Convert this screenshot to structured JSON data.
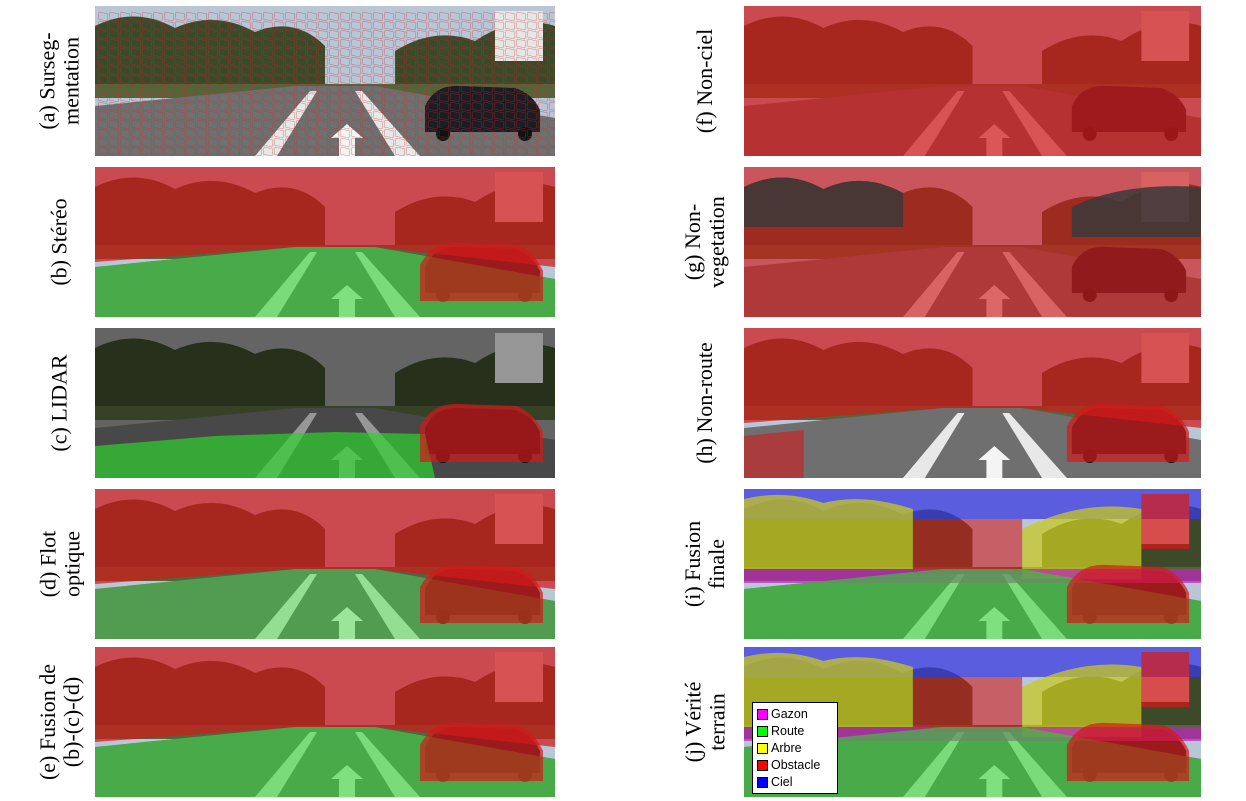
{
  "panels": [
    {
      "id": "a",
      "label_lines": [
        "(a) Surseg-",
        "mentation"
      ],
      "overlay": "overseg"
    },
    {
      "id": "b",
      "label_lines": [
        "(b) Stéréo"
      ],
      "overlay": "stereo"
    },
    {
      "id": "c",
      "label_lines": [
        "(c) LIDAR"
      ],
      "overlay": "lidar"
    },
    {
      "id": "d",
      "label_lines": [
        "(d) Flot",
        "optique"
      ],
      "overlay": "flow"
    },
    {
      "id": "e",
      "label_lines": [
        "(e) Fusion de",
        "(b)-(c)-(d)"
      ],
      "overlay": "fusion_bcd"
    },
    {
      "id": "f",
      "label_lines": [
        "(f) Non-ciel"
      ],
      "overlay": "non_sky"
    },
    {
      "id": "g",
      "label_lines": [
        "(g) Non-",
        "vegetation"
      ],
      "overlay": "non_veg"
    },
    {
      "id": "h",
      "label_lines": [
        "(h) Non-route"
      ],
      "overlay": "non_road"
    },
    {
      "id": "i",
      "label_lines": [
        "(i) Fusion",
        "finale"
      ],
      "overlay": "final"
    },
    {
      "id": "j",
      "label_lines": [
        "(j) Vérité",
        "terrain"
      ],
      "overlay": "ground_truth"
    }
  ],
  "legend": {
    "items": [
      {
        "label": "Gazon",
        "color": "#ff00ff"
      },
      {
        "label": "Route",
        "color": "#00ff00"
      },
      {
        "label": "Arbre",
        "color": "#ffff00"
      },
      {
        "label": "Obstacle",
        "color": "#ff0000"
      },
      {
        "label": "Ciel",
        "color": "#0000ff"
      }
    ]
  },
  "colors": {
    "obstacle": "#d11a1a",
    "road": "#2fd22f",
    "tree": "#c8c820",
    "sky": "#3a3ae0",
    "grass": "#c020c0"
  }
}
